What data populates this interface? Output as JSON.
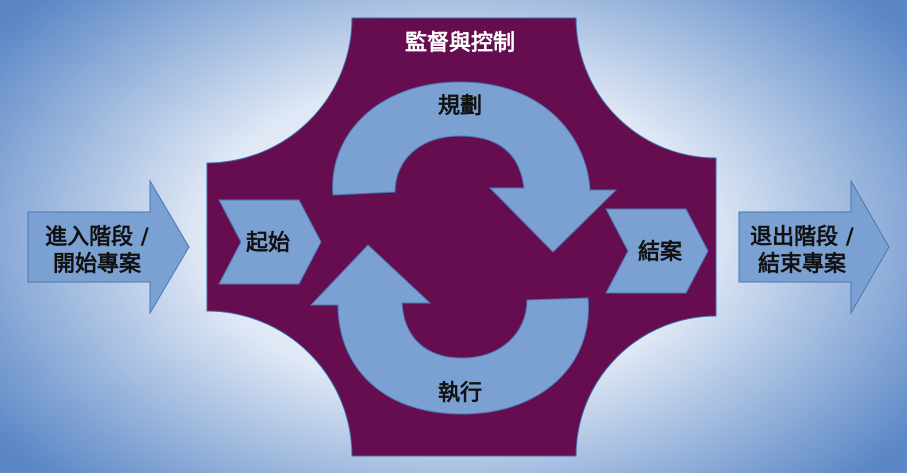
{
  "diagram": {
    "title": "監督與控制",
    "stages": {
      "planning": "規劃",
      "executing": "執行",
      "initiating": "起始",
      "closing": "結案"
    },
    "entry": {
      "line1": "進入階段 /",
      "line2": "開始專案"
    },
    "exit": {
      "line1": "退出階段 /",
      "line2": "結束專案"
    }
  },
  "colors": {
    "background_center": "#ffffff",
    "background_edge": "#5b87c6",
    "frame": "#650d4f",
    "arrow_fill": "#7ba1d2",
    "arrow_stroke": "#3f6fb0",
    "label_dark": "#111111",
    "label_light": "#ffffff"
  }
}
